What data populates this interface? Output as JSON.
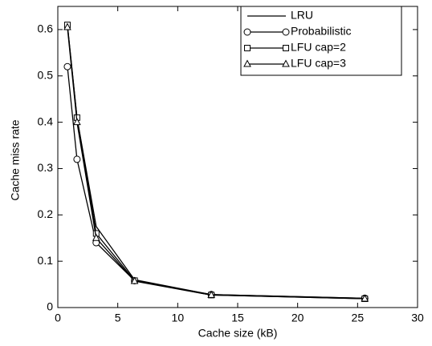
{
  "chart_data": {
    "type": "line",
    "x_label": "Cache size (kB)",
    "y_label": "Cache miss rate",
    "x": [
      0.8,
      1.6,
      3.2,
      6.4,
      12.8,
      25.6
    ],
    "series": [
      {
        "name": "LRU",
        "color": "#000000",
        "marker": "none",
        "values": [
          0.61,
          0.41,
          0.175,
          0.06,
          0.028,
          0.02
        ]
      },
      {
        "name": "Probabilistic",
        "color": "#000000",
        "marker": "circle",
        "values": [
          0.52,
          0.32,
          0.14,
          0.058,
          0.028,
          0.02
        ]
      },
      {
        "name": "LFU cap=2",
        "color": "#000000",
        "marker": "square",
        "values": [
          0.61,
          0.41,
          0.16,
          0.058,
          0.027,
          0.019
        ]
      },
      {
        "name": "LFU cap=3",
        "color": "#000000",
        "marker": "triangle",
        "values": [
          0.605,
          0.4,
          0.15,
          0.057,
          0.027,
          0.019
        ]
      }
    ],
    "xlim": [
      0,
      30
    ],
    "xticks": [
      0,
      5,
      10,
      15,
      20,
      25,
      30
    ],
    "ylim": [
      0,
      0.65
    ],
    "yticks": [
      0,
      0.1,
      0.2,
      0.3,
      0.4,
      0.5,
      0.6
    ],
    "legend": "upper right",
    "grid": false
  }
}
